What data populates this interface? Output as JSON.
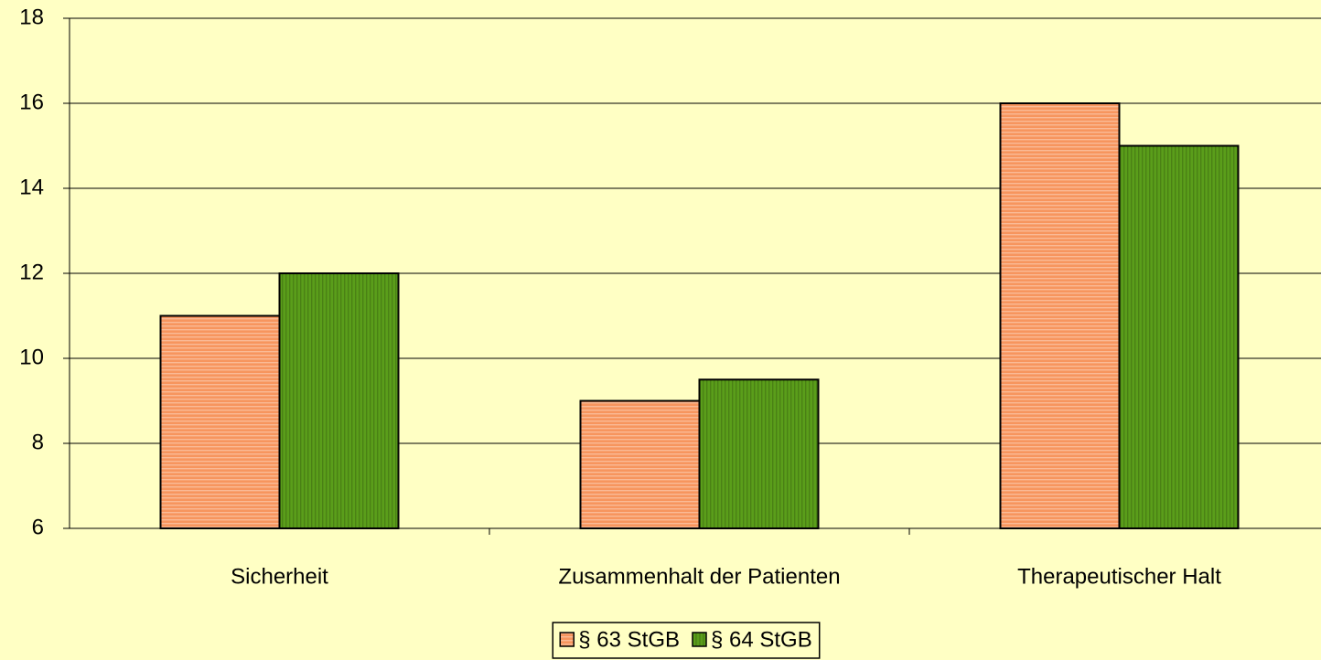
{
  "chart_data": {
    "type": "bar",
    "categories": [
      "Sicherheit",
      "Zusammenhalt der Patienten",
      "Therapeutischer Halt"
    ],
    "series": [
      {
        "name": "§ 63 StGB",
        "color": "#f7955e",
        "values": [
          11,
          9,
          16
        ]
      },
      {
        "name": "§ 64 StGB",
        "color": "#5a9e1a",
        "values": [
          12,
          9.5,
          15
        ]
      }
    ],
    "ylim": [
      6,
      18
    ],
    "yticks": [
      6,
      8,
      10,
      12,
      14,
      16,
      18
    ],
    "grid": true,
    "legend": "bottom"
  }
}
